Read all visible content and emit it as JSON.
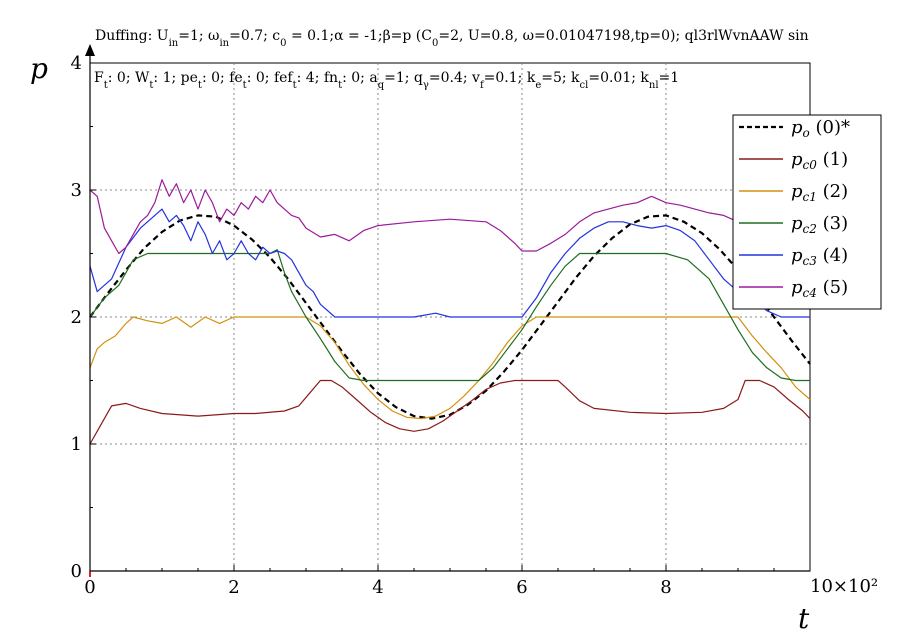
{
  "chart_data": {
    "type": "line",
    "title": "Duffing: U_in=1; ω_in=0.7; c_0 = 0.1;α = -1;β=p (C_0=2, U=0.8, ω=0.01047198,tp=0); ql3rlWvnAAW sin",
    "subtitle": "F_t: 0; W_t: 1; pe_t: 0; fe_t: 0; fef_t: 4; fn_t: 0; a_q=1; q_γ=0.4; v_f=0.1; k_e=5; k_cl=0.01; k_nl=1",
    "xlabel": "t",
    "ylabel": "p",
    "x_scale_label": "10×10²",
    "xlim": [
      0,
      10
    ],
    "ylim": [
      0,
      4
    ],
    "x_ticks": [
      "0",
      "2",
      "4",
      "6",
      "8"
    ],
    "y_ticks": [
      "0",
      "1",
      "2",
      "3",
      "4"
    ],
    "grid": true,
    "legend_position": "top-right",
    "series": [
      {
        "name": "p_o (0)*",
        "name_main": "p",
        "name_sub": "o",
        "name_suffix": " (0)*",
        "color": "#000000",
        "dashed": true,
        "x": [
          0,
          0.25,
          0.5,
          0.75,
          1,
          1.25,
          1.5,
          1.75,
          2,
          2.25,
          2.5,
          2.75,
          3,
          3.25,
          3.5,
          3.75,
          4,
          4.25,
          4.5,
          4.75,
          5,
          5.25,
          5.5,
          5.75,
          6,
          6.25,
          6.5,
          6.75,
          7,
          7.25,
          7.5,
          7.75,
          8,
          8.25,
          8.5,
          8.75,
          9,
          9.25,
          9.5,
          9.75,
          10
        ],
        "y": [
          2.0,
          2.19,
          2.37,
          2.54,
          2.67,
          2.76,
          2.8,
          2.79,
          2.72,
          2.61,
          2.47,
          2.3,
          2.11,
          1.92,
          1.73,
          1.55,
          1.4,
          1.29,
          1.22,
          1.2,
          1.23,
          1.31,
          1.42,
          1.57,
          1.74,
          1.93,
          2.12,
          2.31,
          2.48,
          2.62,
          2.73,
          2.79,
          2.8,
          2.75,
          2.66,
          2.53,
          2.37,
          2.19,
          2.0,
          1.81,
          1.63
        ]
      },
      {
        "name": "p_c0 (1)",
        "name_main": "p",
        "name_sub": "c0",
        "name_suffix": " (1)",
        "color": "#8b1a1a",
        "x": [
          0,
          0.1,
          0.2,
          0.3,
          0.5,
          0.7,
          1,
          1.5,
          2,
          2.3,
          2.7,
          2.9,
          3.05,
          3.2,
          3.35,
          3.5,
          3.7,
          3.9,
          4.1,
          4.3,
          4.5,
          4.7,
          4.9,
          5.1,
          5.3,
          5.5,
          5.7,
          5.9,
          6.0,
          6.5,
          6.6,
          6.8,
          7,
          7.5,
          8,
          8.5,
          8.8,
          9.0,
          9.1,
          9.3,
          9.5,
          9.7,
          9.9,
          10
        ],
        "y": [
          1.0,
          1.1,
          1.2,
          1.3,
          1.32,
          1.28,
          1.24,
          1.22,
          1.24,
          1.24,
          1.26,
          1.3,
          1.4,
          1.5,
          1.5,
          1.45,
          1.35,
          1.25,
          1.17,
          1.12,
          1.1,
          1.12,
          1.18,
          1.26,
          1.34,
          1.43,
          1.48,
          1.5,
          1.5,
          1.5,
          1.45,
          1.34,
          1.28,
          1.25,
          1.24,
          1.25,
          1.28,
          1.35,
          1.5,
          1.5,
          1.45,
          1.35,
          1.26,
          1.2
        ]
      },
      {
        "name": "p_c1 (2)",
        "name_main": "p",
        "name_sub": "c1",
        "name_suffix": " (2)",
        "color": "#d4900e",
        "x": [
          0,
          0.1,
          0.2,
          0.35,
          0.5,
          0.6,
          0.8,
          1,
          1.2,
          1.4,
          1.6,
          1.8,
          2,
          2.5,
          3.0,
          3.2,
          3.4,
          3.6,
          3.8,
          4.0,
          4.2,
          4.4,
          4.6,
          4.8,
          5.0,
          5.2,
          5.4,
          5.6,
          5.8,
          6.0,
          6.2,
          6.4,
          7,
          8,
          8.5,
          9,
          9.2,
          9.4,
          9.6,
          9.8,
          10
        ],
        "y": [
          1.6,
          1.75,
          1.8,
          1.85,
          1.95,
          2.0,
          1.97,
          1.95,
          2.0,
          1.92,
          2.0,
          1.95,
          2.0,
          2.0,
          2.0,
          1.93,
          1.8,
          1.62,
          1.47,
          1.35,
          1.26,
          1.21,
          1.2,
          1.22,
          1.28,
          1.38,
          1.5,
          1.64,
          1.8,
          1.93,
          2.0,
          2.0,
          2.0,
          2.0,
          2.0,
          2.0,
          1.85,
          1.72,
          1.6,
          1.45,
          1.35
        ]
      },
      {
        "name": "p_c2 (3)",
        "name_main": "p",
        "name_sub": "c2",
        "name_suffix": " (3)",
        "color": "#1e6e1e",
        "x": [
          0,
          0.2,
          0.4,
          0.5,
          0.6,
          0.8,
          1,
          1.5,
          2,
          2.5,
          2.6,
          2.7,
          2.8,
          3.0,
          3.2,
          3.4,
          3.6,
          3.8,
          4.0,
          5.0,
          5.4,
          5.6,
          5.8,
          6.0,
          6.2,
          6.4,
          6.6,
          6.8,
          7.0,
          8.0,
          8.3,
          8.6,
          8.8,
          9.0,
          9.2,
          9.4,
          9.6,
          9.8,
          10
        ],
        "y": [
          2.0,
          2.15,
          2.25,
          2.35,
          2.45,
          2.5,
          2.5,
          2.5,
          2.5,
          2.5,
          2.53,
          2.35,
          2.2,
          2.0,
          1.83,
          1.65,
          1.52,
          1.5,
          1.5,
          1.5,
          1.5,
          1.6,
          1.75,
          1.9,
          2.08,
          2.25,
          2.4,
          2.5,
          2.5,
          2.5,
          2.45,
          2.3,
          2.1,
          1.9,
          1.72,
          1.6,
          1.52,
          1.5,
          1.5
        ]
      },
      {
        "name": "p_c3 (4)",
        "name_main": "p",
        "name_sub": "c3",
        "name_suffix": " (4)",
        "color": "#2233dd",
        "x": [
          0,
          0.1,
          0.3,
          0.5,
          0.7,
          0.9,
          1.0,
          1.1,
          1.2,
          1.3,
          1.4,
          1.5,
          1.6,
          1.7,
          1.8,
          1.9,
          2.0,
          2.1,
          2.2,
          2.3,
          2.4,
          2.5,
          2.6,
          2.7,
          2.8,
          2.9,
          3.0,
          3.1,
          3.2,
          3.4,
          3.6,
          3.8,
          4.0,
          4.5,
          4.8,
          5.0,
          5.5,
          5.8,
          6.0,
          6.2,
          6.4,
          6.6,
          6.8,
          7.0,
          7.2,
          7.4,
          7.6,
          7.8,
          8.0,
          8.2,
          8.4,
          8.6,
          8.8,
          9.0,
          9.2,
          9.4,
          9.6,
          9.8,
          10
        ],
        "y": [
          2.4,
          2.2,
          2.3,
          2.55,
          2.7,
          2.8,
          2.85,
          2.75,
          2.8,
          2.72,
          2.6,
          2.75,
          2.65,
          2.5,
          2.6,
          2.45,
          2.5,
          2.6,
          2.5,
          2.45,
          2.55,
          2.5,
          2.52,
          2.5,
          2.45,
          2.35,
          2.25,
          2.2,
          2.1,
          2.0,
          2.0,
          2.0,
          2.0,
          2.0,
          2.03,
          2.0,
          2.0,
          2.0,
          2.0,
          2.15,
          2.35,
          2.5,
          2.62,
          2.7,
          2.75,
          2.75,
          2.72,
          2.7,
          2.72,
          2.68,
          2.6,
          2.45,
          2.3,
          2.2,
          2.15,
          2.05,
          2.0,
          2.0,
          2.0
        ]
      },
      {
        "name": "p_c4 (5)",
        "name_main": "p",
        "name_sub": "c4",
        "name_suffix": " (5)",
        "color": "#9b1b9b",
        "x": [
          0,
          0.1,
          0.2,
          0.3,
          0.4,
          0.5,
          0.6,
          0.7,
          0.8,
          0.9,
          1.0,
          1.1,
          1.2,
          1.3,
          1.4,
          1.5,
          1.6,
          1.7,
          1.8,
          1.9,
          2.0,
          2.1,
          2.2,
          2.3,
          2.4,
          2.5,
          2.6,
          2.7,
          2.8,
          2.9,
          3.0,
          3.2,
          3.4,
          3.6,
          3.8,
          4.0,
          4.5,
          5.0,
          5.5,
          5.7,
          5.9,
          6.0,
          6.2,
          6.4,
          6.6,
          6.8,
          7.0,
          7.2,
          7.4,
          7.6,
          7.8,
          8.0,
          8.2,
          8.4,
          8.6,
          8.8,
          9.0,
          9.2,
          9.4,
          9.6,
          9.8,
          10
        ],
        "y": [
          3.0,
          2.95,
          2.7,
          2.6,
          2.5,
          2.55,
          2.65,
          2.75,
          2.8,
          2.9,
          3.08,
          2.95,
          3.05,
          2.9,
          3.0,
          2.85,
          3.0,
          2.9,
          2.75,
          2.85,
          2.8,
          2.9,
          2.85,
          2.95,
          2.9,
          3.0,
          2.9,
          2.85,
          2.8,
          2.78,
          2.7,
          2.63,
          2.65,
          2.6,
          2.68,
          2.72,
          2.75,
          2.77,
          2.75,
          2.68,
          2.58,
          2.52,
          2.52,
          2.58,
          2.65,
          2.75,
          2.82,
          2.85,
          2.88,
          2.9,
          2.95,
          2.9,
          2.88,
          2.85,
          2.82,
          2.8,
          2.75,
          2.7,
          2.63,
          2.58,
          2.55,
          2.55
        ]
      }
    ]
  }
}
